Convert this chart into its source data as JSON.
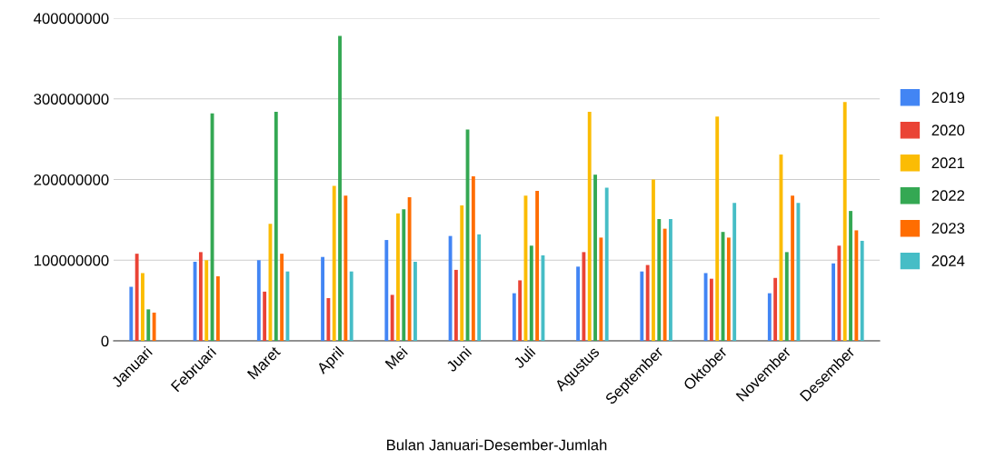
{
  "chart_data": {
    "type": "bar",
    "xlabel": "Bulan Januari-Desember-Jumlah",
    "categories": [
      "Januari",
      "Februari",
      "Maret",
      "April",
      "Mei",
      "Juni",
      "Juli",
      "Agustus",
      "September",
      "Oktober",
      "November",
      "Desember"
    ],
    "series": [
      {
        "name": "2019",
        "color": "#4285f4",
        "values": [
          67000000,
          98000000,
          100000000,
          104000000,
          125000000,
          130000000,
          59000000,
          92000000,
          86000000,
          84000000,
          59000000,
          96000000
        ]
      },
      {
        "name": "2020",
        "color": "#ea4335",
        "values": [
          108000000,
          110000000,
          61000000,
          53000000,
          57000000,
          88000000,
          75000000,
          110000000,
          94000000,
          77000000,
          78000000,
          118000000
        ]
      },
      {
        "name": "2021",
        "color": "#fbbc04",
        "values": [
          84000000,
          100000000,
          145000000,
          192000000,
          158000000,
          168000000,
          180000000,
          284000000,
          200000000,
          278000000,
          231000000,
          296000000
        ]
      },
      {
        "name": "2022",
        "color": "#34a853",
        "values": [
          39000000,
          282000000,
          284000000,
          378000000,
          163000000,
          262000000,
          118000000,
          206000000,
          151000000,
          135000000,
          110000000,
          161000000
        ]
      },
      {
        "name": "2023",
        "color": "#ff6d01",
        "values": [
          35000000,
          80000000,
          108000000,
          180000000,
          178000000,
          204000000,
          186000000,
          128000000,
          139000000,
          128000000,
          180000000,
          137000000
        ]
      },
      {
        "name": "2024",
        "color": "#46bdc6",
        "values": [
          null,
          null,
          86000000,
          86000000,
          98000000,
          132000000,
          106000000,
          190000000,
          151000000,
          171000000,
          171000000,
          124000000
        ]
      }
    ],
    "ylim": [
      0,
      400000000
    ],
    "yticks": [
      0,
      100000000,
      200000000,
      300000000,
      400000000
    ],
    "grid": "y",
    "legend": "right"
  }
}
